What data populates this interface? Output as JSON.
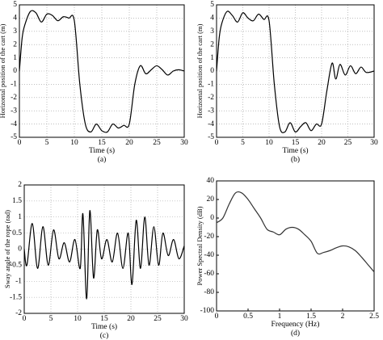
{
  "chart_data": [
    {
      "type": "line",
      "caption": "(a)",
      "xlabel": "Time (s)",
      "ylabel": "Horizontal position of the cart (m)",
      "xlim": [
        0,
        30
      ],
      "xticks": [
        0,
        5,
        10,
        15,
        20,
        25,
        30
      ],
      "ylim": [
        -5,
        5
      ],
      "yticks": [
        -5,
        -4,
        -3,
        -2,
        -1,
        0,
        1,
        2,
        3,
        4,
        5
      ],
      "grid": true,
      "series": [
        {
          "color": "#000000",
          "x": [
            0,
            0.5,
            1,
            2,
            3,
            4,
            5,
            6,
            7,
            8,
            9,
            10,
            11,
            12,
            13,
            14,
            15,
            16,
            17,
            18,
            19,
            20,
            21,
            22,
            23,
            24,
            25,
            26,
            27,
            28,
            29,
            30
          ],
          "values": [
            0,
            2.5,
            3.5,
            4.5,
            4.4,
            3.7,
            4.3,
            4.2,
            3.8,
            4.1,
            4.0,
            3.8,
            -1,
            -4,
            -4.6,
            -4.0,
            -4.5,
            -4.6,
            -4.0,
            -4.3,
            -4.1,
            -4.0,
            -1,
            0.4,
            -0.2,
            0.1,
            0.4,
            0.1,
            -0.3,
            0,
            0.1,
            0
          ]
        }
      ]
    },
    {
      "type": "line",
      "caption": "(b)",
      "xlabel": "Time (s)",
      "ylabel": "Horizontal position of the cart (m)",
      "xlim": [
        0,
        30
      ],
      "xticks": [
        0,
        5,
        10,
        15,
        20,
        25,
        30
      ],
      "ylim": [
        -5,
        5
      ],
      "yticks": [
        -5,
        -4,
        -3,
        -2,
        -1,
        0,
        1,
        2,
        3,
        4,
        5
      ],
      "grid": true,
      "series": [
        {
          "color": "#000000",
          "x": [
            0,
            0.5,
            1,
            2,
            3,
            4,
            5,
            6,
            7,
            8,
            9,
            10,
            11,
            12,
            13,
            14,
            15,
            16,
            17,
            18,
            19,
            20,
            21,
            22,
            22.7,
            23.5,
            24.5,
            25.5,
            26.5,
            27.5,
            28.5,
            30
          ],
          "values": [
            0,
            2.5,
            3.6,
            4.5,
            4.2,
            3.7,
            4.4,
            4.0,
            3.8,
            4.3,
            3.9,
            3.8,
            -1,
            -4.2,
            -4.6,
            -3.9,
            -4.6,
            -4.2,
            -3.9,
            -4.5,
            -4.0,
            -4.0,
            -1.5,
            0.6,
            -0.6,
            0.5,
            -0.3,
            0.4,
            -0.2,
            0.3,
            -0.1,
            0
          ]
        }
      ]
    },
    {
      "type": "line",
      "caption": "(c)",
      "xlabel": "Time (s)",
      "ylabel": "Sway angle of the rope (rad)",
      "xlim": [
        0,
        30
      ],
      "xticks": [
        0,
        5,
        10,
        15,
        20,
        25,
        30
      ],
      "ylim": [
        -2,
        2
      ],
      "yticks": [
        -2,
        -1.5,
        -1,
        -0.5,
        0,
        0.5,
        1,
        1.5,
        2
      ],
      "grid": true,
      "series": [
        {
          "color": "#000000",
          "x": [
            0,
            0.5,
            1.5,
            2.5,
            3.5,
            4.5,
            5.5,
            6.5,
            7.5,
            8.5,
            9.5,
            10.5,
            11,
            11.7,
            12.3,
            13,
            13.7,
            14.5,
            15.5,
            16.5,
            17.5,
            18.5,
            19.5,
            20.2,
            21,
            21.8,
            22.6,
            23.4,
            24.3,
            25.2,
            26,
            27,
            28,
            29,
            30
          ],
          "values": [
            0,
            -0.5,
            0.8,
            -0.6,
            0.7,
            -0.5,
            0.6,
            -0.3,
            0.2,
            -0.4,
            0.3,
            -0.6,
            1.1,
            -1.55,
            1.2,
            -0.9,
            0.6,
            -0.3,
            0.3,
            -0.4,
            0.5,
            -0.6,
            0.5,
            -1.1,
            0.9,
            -0.6,
            1.0,
            -0.5,
            0.7,
            -0.5,
            0.5,
            -0.2,
            0.3,
            -0.3,
            0.1
          ]
        }
      ]
    },
    {
      "type": "line",
      "caption": "(d)",
      "xlabel": "Frequency (Hz)",
      "ylabel": "Power Spectral Density (dB)",
      "xlim": [
        0,
        2.5
      ],
      "xticks": [
        0,
        0.5,
        1,
        1.5,
        2,
        2.5
      ],
      "ylim": [
        -100,
        40
      ],
      "yticks": [
        -100,
        -80,
        -60,
        -40,
        -20,
        0,
        20,
        40
      ],
      "grid": false,
      "series": [
        {
          "color": "#333333",
          "x": [
            0,
            0.1,
            0.2,
            0.3,
            0.4,
            0.5,
            0.6,
            0.7,
            0.8,
            0.9,
            1.0,
            1.1,
            1.2,
            1.3,
            1.4,
            1.5,
            1.6,
            1.7,
            1.8,
            1.9,
            2.0,
            2.1,
            2.2,
            2.3,
            2.4,
            2.5
          ],
          "values": [
            -5,
            0,
            15,
            27,
            27,
            20,
            10,
            0,
            -12,
            -15,
            -18,
            -12,
            -10,
            -12,
            -18,
            -25,
            -38,
            -37,
            -35,
            -32,
            -30,
            -31,
            -35,
            -42,
            -50,
            -58
          ]
        }
      ]
    }
  ]
}
